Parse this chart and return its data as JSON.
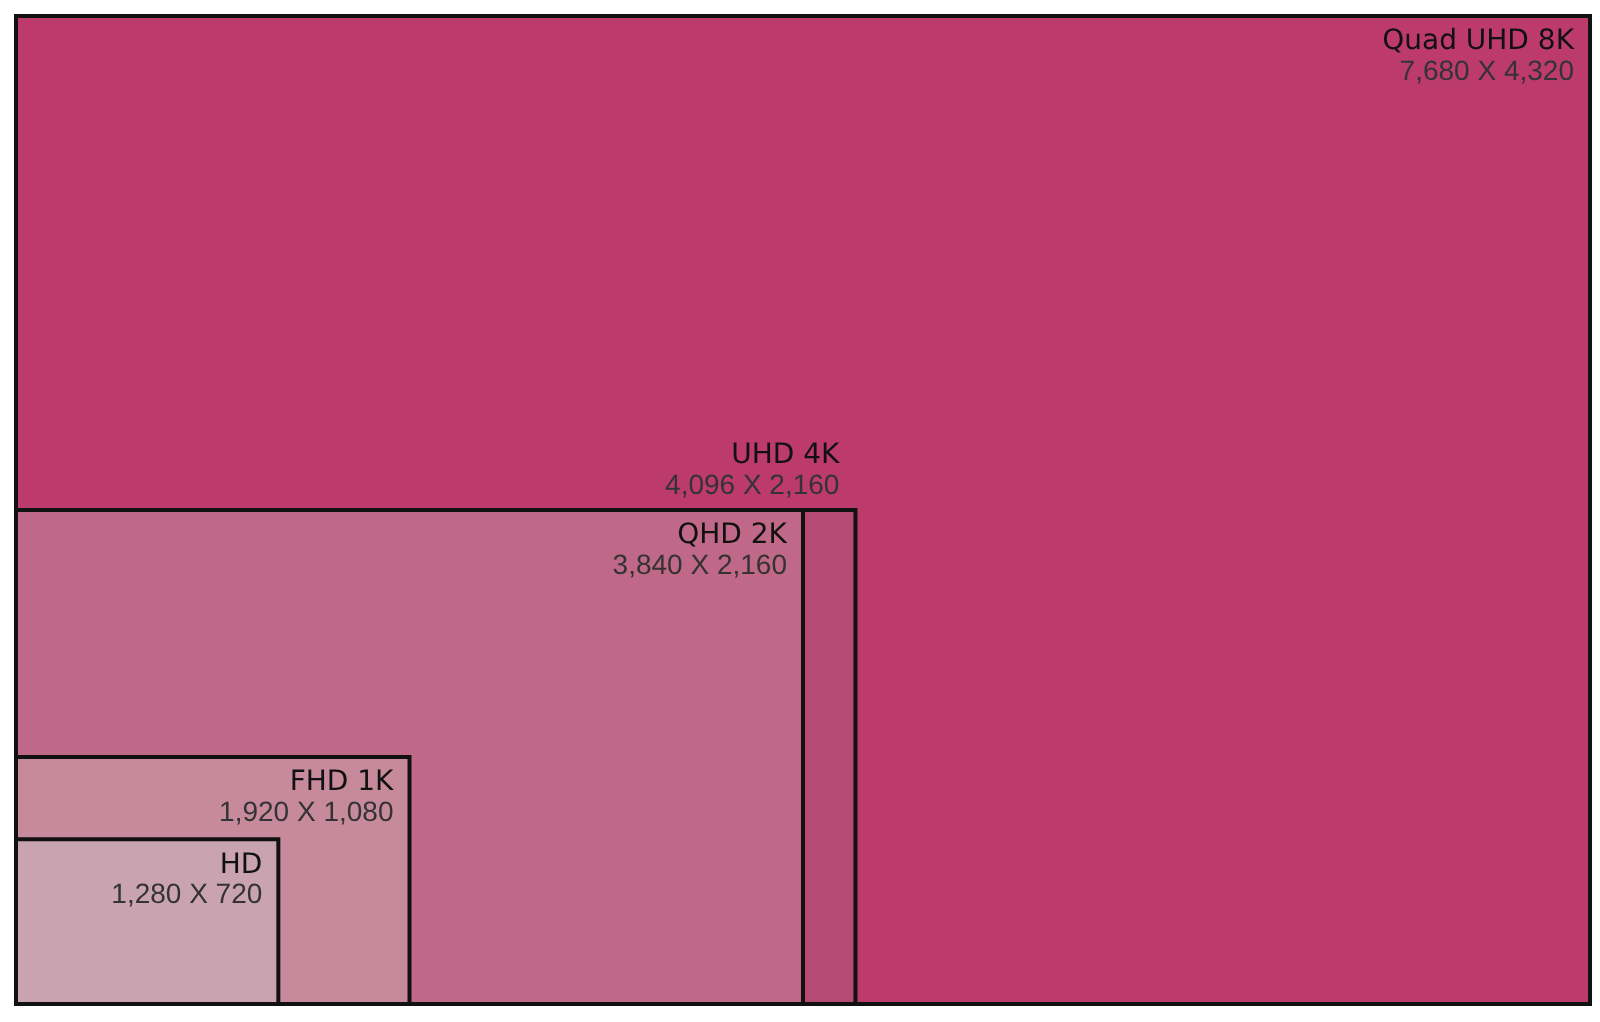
{
  "chart_data": {
    "type": "other",
    "categories": [
      "HD",
      "FHD 1K",
      "QHD 2K",
      "UHD 4K",
      "Quad UHD 8K"
    ],
    "series": [
      {
        "values": [
          1280,
          1920,
          3840,
          4096,
          7680
        ],
        "value_labels": [
          "1,280 X",
          "1,920 X",
          "3,840 X",
          "4,096 X",
          "7,680 X"
        ],
        "colors": [
          "#c9a3b0",
          "#c78a9c",
          "#c06888",
          "#b54a74",
          "#bc3b6c"
        ]
      },
      {
        "values": [
          720,
          1080,
          2160,
          2160,
          4320
        ],
        "value_labels": [
          "720",
          "1,080",
          "2,160",
          "2,160",
          "4,320"
        ]
      }
    ]
  }
}
